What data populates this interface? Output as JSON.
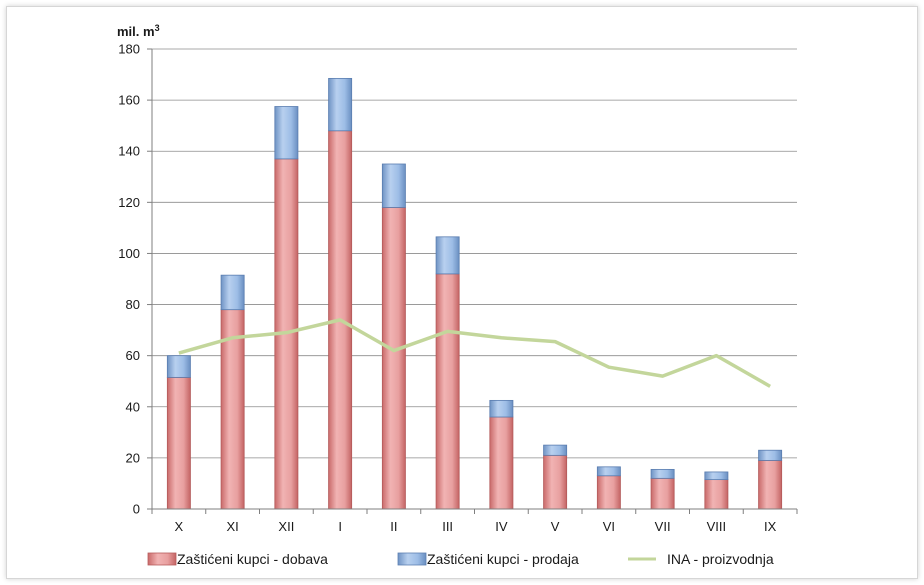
{
  "chart_data": {
    "type": "bar",
    "stacked": true,
    "unit_label": "mil. m",
    "unit_superscript": "3",
    "categories": [
      "X",
      "XI",
      "XII",
      "I",
      "II",
      "III",
      "IV",
      "V",
      "VI",
      "VII",
      "VIII",
      "IX"
    ],
    "ylim": [
      0,
      180
    ],
    "yticks": [
      0,
      20,
      40,
      60,
      80,
      100,
      120,
      140,
      160,
      180
    ],
    "grid": true,
    "legend_position": "bottom",
    "series": [
      {
        "name": "Zaštićeni kupci - dobava",
        "kind": "bar",
        "color": "#e8a0a0",
        "values": [
          51.5,
          78,
          137,
          148,
          118,
          92,
          36,
          21,
          13,
          12,
          11.5,
          19
        ]
      },
      {
        "name": "Zaštićeni kupci - prodaja",
        "kind": "bar",
        "color": "#9dbde6",
        "values": [
          8.5,
          13.5,
          20.5,
          20.5,
          17,
          14.5,
          6.5,
          4,
          3.5,
          3.5,
          3,
          4
        ]
      },
      {
        "name": "INA -  proizvodnja",
        "kind": "line",
        "color": "#c3d69b",
        "values": [
          61,
          67,
          69,
          74,
          62,
          69.5,
          67,
          65.5,
          55.5,
          52,
          60,
          48
        ]
      }
    ]
  }
}
